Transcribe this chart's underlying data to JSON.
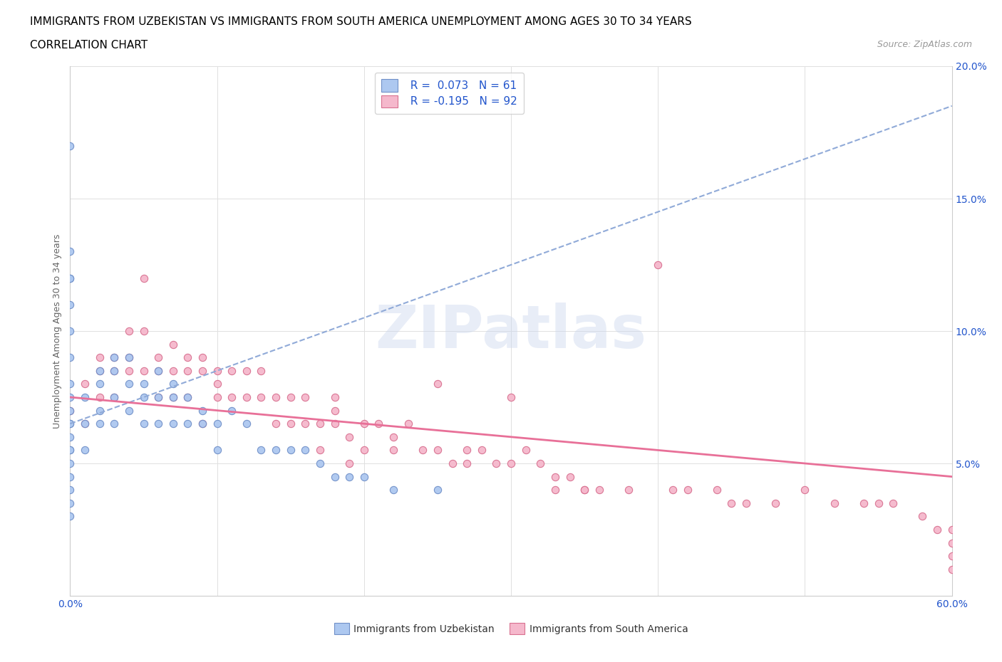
{
  "title_line1": "IMMIGRANTS FROM UZBEKISTAN VS IMMIGRANTS FROM SOUTH AMERICA UNEMPLOYMENT AMONG AGES 30 TO 34 YEARS",
  "title_line2": "CORRELATION CHART",
  "source_text": "Source: ZipAtlas.com",
  "ylabel": "Unemployment Among Ages 30 to 34 years",
  "xlim": [
    0.0,
    0.6
  ],
  "ylim": [
    0.0,
    0.2
  ],
  "xticks": [
    0.0,
    0.1,
    0.2,
    0.3,
    0.4,
    0.5,
    0.6
  ],
  "xticklabels": [
    "0.0%",
    "",
    "",
    "",
    "",
    "",
    "60.0%"
  ],
  "yticks": [
    0.0,
    0.05,
    0.1,
    0.15,
    0.2
  ],
  "yticklabels": [
    "",
    "5.0%",
    "10.0%",
    "15.0%",
    "20.0%"
  ],
  "uzbekistan_color": "#adc8f0",
  "south_america_color": "#f5b8cc",
  "uzbekistan_edge_color": "#7090c8",
  "south_america_edge_color": "#d87090",
  "trend_uzbekistan_color": "#90aad8",
  "trend_south_america_color": "#e87098",
  "legend_r_uzbekistan": "R =  0.073",
  "legend_n_uzbekistan": "N = 61",
  "legend_r_south_america": "R = -0.195",
  "legend_n_south_america": "N = 92",
  "uzbekistan_x": [
    0.0,
    0.0,
    0.0,
    0.0,
    0.0,
    0.0,
    0.0,
    0.0,
    0.0,
    0.0,
    0.0,
    0.0,
    0.0,
    0.0,
    0.0,
    0.0,
    0.0,
    0.0,
    0.0,
    0.0,
    0.01,
    0.01,
    0.01,
    0.02,
    0.02,
    0.02,
    0.02,
    0.03,
    0.03,
    0.03,
    0.03,
    0.04,
    0.04,
    0.04,
    0.05,
    0.05,
    0.05,
    0.06,
    0.06,
    0.06,
    0.07,
    0.07,
    0.07,
    0.08,
    0.08,
    0.09,
    0.09,
    0.1,
    0.1,
    0.11,
    0.12,
    0.13,
    0.14,
    0.15,
    0.16,
    0.17,
    0.18,
    0.19,
    0.2,
    0.22,
    0.25
  ],
  "uzbekistan_y": [
    0.17,
    0.13,
    0.12,
    0.12,
    0.11,
    0.1,
    0.09,
    0.08,
    0.075,
    0.07,
    0.065,
    0.065,
    0.06,
    0.055,
    0.055,
    0.05,
    0.045,
    0.04,
    0.035,
    0.03,
    0.075,
    0.065,
    0.055,
    0.085,
    0.08,
    0.07,
    0.065,
    0.09,
    0.085,
    0.075,
    0.065,
    0.09,
    0.08,
    0.07,
    0.08,
    0.075,
    0.065,
    0.085,
    0.075,
    0.065,
    0.08,
    0.075,
    0.065,
    0.075,
    0.065,
    0.07,
    0.065,
    0.065,
    0.055,
    0.07,
    0.065,
    0.055,
    0.055,
    0.055,
    0.055,
    0.05,
    0.045,
    0.045,
    0.045,
    0.04,
    0.04
  ],
  "south_america_x": [
    0.0,
    0.01,
    0.01,
    0.02,
    0.02,
    0.02,
    0.03,
    0.03,
    0.03,
    0.04,
    0.04,
    0.04,
    0.05,
    0.05,
    0.05,
    0.06,
    0.06,
    0.06,
    0.07,
    0.07,
    0.07,
    0.08,
    0.08,
    0.08,
    0.09,
    0.09,
    0.09,
    0.1,
    0.1,
    0.1,
    0.11,
    0.11,
    0.12,
    0.12,
    0.13,
    0.13,
    0.14,
    0.14,
    0.15,
    0.15,
    0.16,
    0.16,
    0.17,
    0.17,
    0.18,
    0.18,
    0.19,
    0.19,
    0.2,
    0.2,
    0.21,
    0.22,
    0.23,
    0.24,
    0.25,
    0.26,
    0.27,
    0.28,
    0.29,
    0.3,
    0.31,
    0.32,
    0.33,
    0.34,
    0.35,
    0.36,
    0.38,
    0.4,
    0.41,
    0.42,
    0.44,
    0.45,
    0.46,
    0.48,
    0.5,
    0.52,
    0.54,
    0.55,
    0.56,
    0.58,
    0.59,
    0.6,
    0.6,
    0.6,
    0.6,
    0.25,
    0.3,
    0.35,
    0.18,
    0.22,
    0.27,
    0.33
  ],
  "south_america_y": [
    0.07,
    0.08,
    0.065,
    0.09,
    0.085,
    0.075,
    0.09,
    0.085,
    0.075,
    0.1,
    0.09,
    0.085,
    0.12,
    0.1,
    0.085,
    0.09,
    0.085,
    0.075,
    0.095,
    0.085,
    0.075,
    0.09,
    0.085,
    0.075,
    0.09,
    0.085,
    0.065,
    0.085,
    0.08,
    0.075,
    0.085,
    0.075,
    0.085,
    0.075,
    0.085,
    0.075,
    0.075,
    0.065,
    0.075,
    0.065,
    0.075,
    0.065,
    0.065,
    0.055,
    0.075,
    0.065,
    0.06,
    0.05,
    0.065,
    0.055,
    0.065,
    0.055,
    0.065,
    0.055,
    0.055,
    0.05,
    0.055,
    0.055,
    0.05,
    0.05,
    0.055,
    0.05,
    0.045,
    0.045,
    0.04,
    0.04,
    0.04,
    0.125,
    0.04,
    0.04,
    0.04,
    0.035,
    0.035,
    0.035,
    0.04,
    0.035,
    0.035,
    0.035,
    0.035,
    0.03,
    0.025,
    0.025,
    0.02,
    0.015,
    0.01,
    0.08,
    0.075,
    0.04,
    0.07,
    0.06,
    0.05,
    0.04
  ],
  "trend_uz_x0": 0.0,
  "trend_uz_x1": 0.6,
  "trend_uz_y0": 0.065,
  "trend_uz_y1": 0.185,
  "trend_sa_x0": 0.0,
  "trend_sa_x1": 0.6,
  "trend_sa_y0": 0.075,
  "trend_sa_y1": 0.045,
  "watermark_text": "ZIPatlas",
  "background_color": "#ffffff",
  "grid_color": "#e0e0e0",
  "title_fontsize": 11,
  "axis_label_fontsize": 9,
  "tick_fontsize": 10,
  "legend_fontsize": 11,
  "ylabel_color": "#666666",
  "tick_color_blue": "#2255cc"
}
